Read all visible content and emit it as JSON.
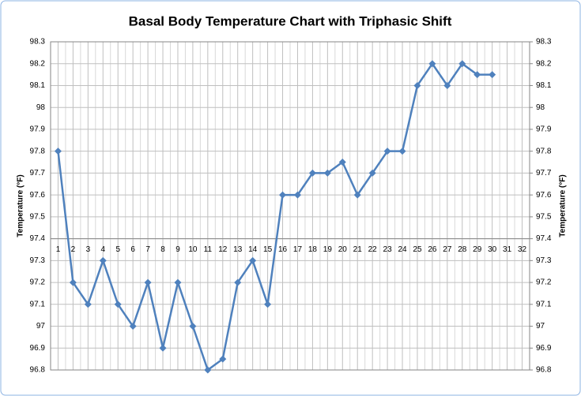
{
  "chart_data": {
    "type": "line",
    "title": "Basal Body Temperature Chart with Triphasic Shift",
    "ylabel": "Temperature (°F)",
    "y2label": "Temperature (°F)",
    "categories": [
      "1",
      "2",
      "3",
      "4",
      "5",
      "6",
      "7",
      "8",
      "9",
      "10",
      "11",
      "12",
      "13",
      "14",
      "15",
      "16",
      "17",
      "18",
      "19",
      "20",
      "21",
      "22",
      "23",
      "24",
      "25",
      "26",
      "27",
      "28",
      "29",
      "30",
      "31",
      "32"
    ],
    "series": [
      {
        "name": "Temperature",
        "color": "#4f81bd",
        "values": [
          97.8,
          97.2,
          97.1,
          97.3,
          97.1,
          97.0,
          97.2,
          96.9,
          97.2,
          97.0,
          96.8,
          96.85,
          97.2,
          97.3,
          97.1,
          97.6,
          97.6,
          97.7,
          97.7,
          97.75,
          97.6,
          97.7,
          97.8,
          97.8,
          98.1,
          98.2,
          98.1,
          98.2,
          98.15,
          98.15,
          null,
          null
        ]
      }
    ],
    "ylim": [
      96.8,
      98.3
    ],
    "yticks": [
      96.8,
      96.9,
      97,
      97.1,
      97.2,
      97.3,
      97.4,
      97.5,
      97.6,
      97.7,
      97.8,
      97.9,
      98,
      98.1,
      98.2,
      98.3
    ],
    "y2lim": [
      96.8,
      98.3
    ],
    "y2ticks": [
      96.8,
      96.9,
      97,
      97.1,
      97.2,
      97.3,
      97.4,
      97.5,
      97.6,
      97.7,
      97.8,
      97.9,
      98,
      98.1,
      98.2,
      98.3
    ],
    "xaxis_at": 97.4,
    "grid": true
  }
}
